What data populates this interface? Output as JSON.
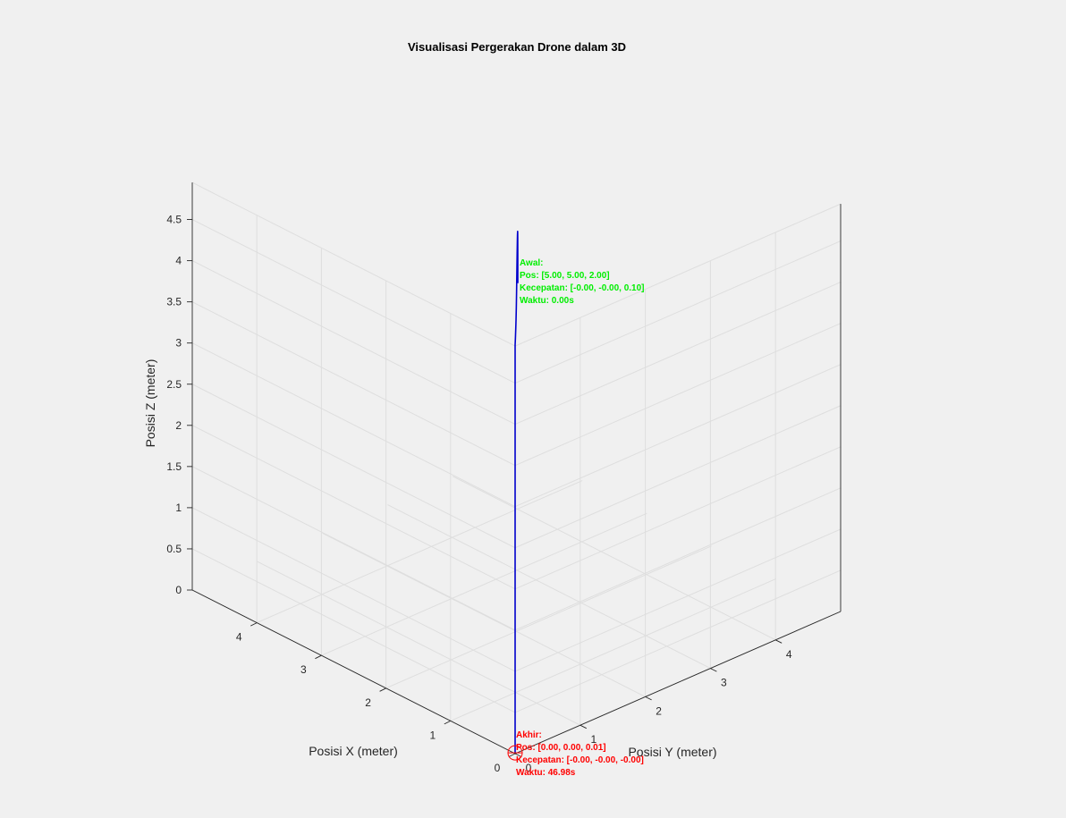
{
  "figure": {
    "background": "#f0f0f0"
  },
  "chart_data": {
    "type": "line",
    "projection": "3d",
    "title": "Visualisasi Pergerakan Drone dalam 3D",
    "xlabel": "Posisi X (meter)",
    "ylabel": "Posisi Y (meter)",
    "zlabel": "Posisi Z (meter)",
    "xlim": [
      0,
      5
    ],
    "ylim": [
      0,
      5
    ],
    "zlim": [
      0,
      4.95
    ],
    "x_ticks": [
      "0",
      "1",
      "2",
      "3",
      "4"
    ],
    "y_ticks": [
      "0",
      "1",
      "2",
      "3",
      "4"
    ],
    "z_ticks": [
      "0",
      "0.5",
      "1",
      "1.5",
      "2",
      "2.5",
      "3",
      "3.5",
      "4",
      "4.5"
    ],
    "grid": true,
    "box": true,
    "series": [
      {
        "color": "#0000cc",
        "points": [
          [
            5.0,
            5.0,
            2.0
          ],
          [
            4.99,
            4.99,
            2.25
          ],
          [
            4.95,
            4.95,
            2.5
          ],
          [
            4.8,
            4.8,
            2.78
          ],
          [
            4.5,
            4.5,
            3.0
          ],
          [
            4.0,
            4.0,
            3.2
          ],
          [
            3.5,
            3.5,
            3.36
          ],
          [
            3.0,
            3.0,
            3.5
          ],
          [
            2.5,
            2.5,
            3.65
          ],
          [
            2.0,
            2.0,
            3.85
          ],
          [
            1.5,
            1.5,
            4.1
          ],
          [
            1.0,
            1.0,
            4.38
          ],
          [
            0.5,
            0.5,
            4.66
          ],
          [
            0.05,
            0.05,
            4.93
          ],
          [
            0.02,
            0.02,
            4.95
          ],
          [
            0.0,
            0.0,
            4.9
          ],
          [
            0.0,
            0.0,
            0.01
          ]
        ]
      }
    ],
    "annotations": [
      {
        "id": "start",
        "color": "#00ee00",
        "lines": [
          "Awal:",
          "Pos: [5.00, 5.00, 2.00]",
          "Kecepatan: [-0.00, -0.00, 0.10]",
          "Waktu: 0.00s"
        ]
      },
      {
        "id": "end",
        "color": "#ff0000",
        "lines": [
          "Akhir:",
          "Pos: [0.00, 0.00, 0.01]",
          "Kecepatan: [-0.00, -0.00, -0.00]",
          "Waktu: 46.98s"
        ]
      }
    ]
  }
}
